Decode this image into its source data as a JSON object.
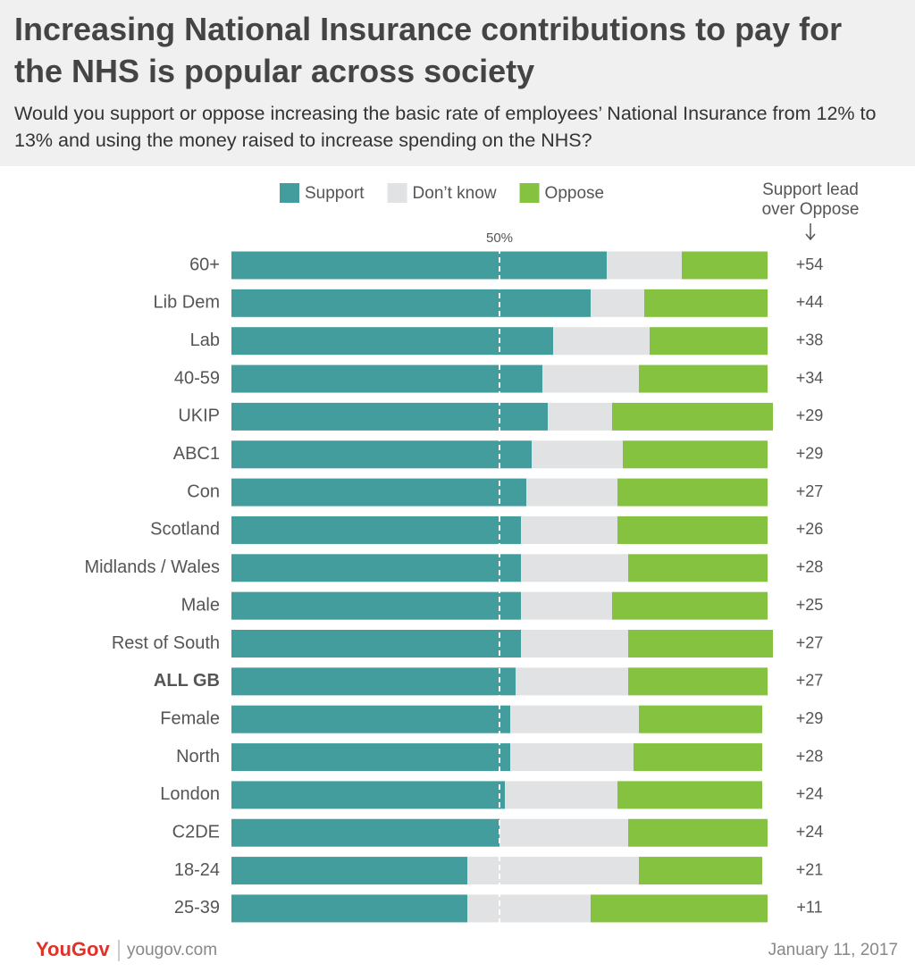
{
  "chart_data": {
    "type": "stacked-bar-horizontal",
    "title": "Increasing National Insurance contributions to pay for the NHS is popular across society",
    "subtitle": "Would you support or oppose increasing the basic rate of employees’ National Insurance from 12% to 13% and using the money raised to increase spending on the NHS?",
    "categories": [
      "60+",
      "Lib Dem",
      "Lab",
      "40-59",
      "UKIP",
      "ABC1",
      "Con",
      "Scotland",
      "Midlands / Wales",
      "Male",
      "Rest of South",
      "ALL GB",
      "Female",
      "North",
      "London",
      "C2DE",
      "18-24",
      "25-39"
    ],
    "highlight_index": 11,
    "series": [
      {
        "name": "Support",
        "color": "#449d9d",
        "values": [
          70,
          67,
          60,
          58,
          59,
          56,
          55,
          54,
          54,
          54,
          54,
          53,
          52,
          52,
          51,
          50,
          44,
          44
        ]
      },
      {
        "name": "Don’t know",
        "color": "#e1e2e3",
        "values": [
          14,
          10,
          18,
          18,
          12,
          17,
          17,
          18,
          20,
          17,
          20,
          21,
          24,
          23,
          21,
          24,
          32,
          23
        ]
      },
      {
        "name": "Oppose",
        "color": "#84c23f",
        "values": [
          16,
          23,
          22,
          24,
          30,
          27,
          28,
          28,
          26,
          29,
          27,
          26,
          23,
          24,
          27,
          26,
          23,
          33
        ]
      }
    ],
    "xlim": [
      0,
      100
    ],
    "reference_line": {
      "value": 50,
      "label": "50%"
    },
    "lead": {
      "title": "Support lead over Oppose",
      "values": [
        54,
        44,
        38,
        34,
        29,
        29,
        27,
        26,
        28,
        25,
        27,
        27,
        29,
        28,
        24,
        24,
        21,
        11
      ],
      "value_labels": [
        "+54",
        "+44",
        "+38",
        "+34",
        "+29",
        "+29",
        "+27",
        "+26",
        "+28",
        "+25",
        "+27",
        "+27",
        "+29",
        "+28",
        "+24",
        "+24",
        "+21",
        "+11"
      ]
    },
    "brand": "YouGov",
    "source": "yougov.com",
    "date": "January 11, 2017"
  }
}
